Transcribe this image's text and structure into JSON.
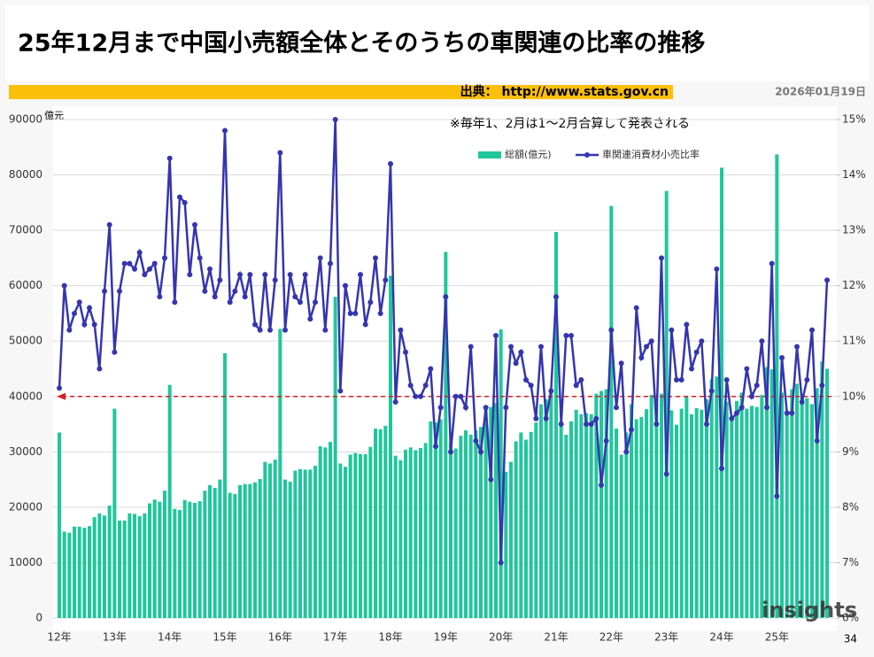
{
  "chart_data": {
    "type": "bar-line",
    "title": "25年12月まで中国小売額全体とそのうちの車関連の比率の推移",
    "source": "出典： http://www.stats.gov.cn",
    "date": "2026年01月19日",
    "note": "※毎年1、2月は1～2月合算して発表される",
    "y_unit": "億元",
    "page_number": "34",
    "logo": "insights",
    "grid": true,
    "legend_position": "top-right",
    "categories": [
      "12年",
      null,
      null,
      null,
      null,
      null,
      null,
      null,
      null,
      null,
      null,
      "13年",
      null,
      null,
      null,
      null,
      null,
      null,
      null,
      null,
      null,
      null,
      "14年",
      null,
      null,
      null,
      null,
      null,
      null,
      null,
      null,
      null,
      null,
      "15年",
      null,
      null,
      null,
      null,
      null,
      null,
      null,
      null,
      null,
      null,
      "16年",
      null,
      null,
      null,
      null,
      null,
      null,
      null,
      null,
      null,
      null,
      "17年",
      null,
      null,
      null,
      null,
      null,
      null,
      null,
      null,
      null,
      null,
      "18年",
      null,
      null,
      null,
      null,
      null,
      null,
      null,
      null,
      null,
      null,
      "19年",
      null,
      null,
      null,
      null,
      null,
      null,
      null,
      null,
      null,
      null,
      "20年",
      null,
      null,
      null,
      null,
      null,
      null,
      null,
      null,
      null,
      null,
      "21年",
      null,
      null,
      null,
      null,
      null,
      null,
      null,
      null,
      null,
      null,
      "22年",
      null,
      null,
      null,
      null,
      null,
      null,
      null,
      null,
      null,
      null,
      "23年",
      null,
      null,
      null,
      null,
      null,
      null,
      null,
      null,
      null,
      null,
      "24年",
      null,
      null,
      null,
      null,
      null,
      null,
      null,
      null,
      null,
      null,
      "25年",
      null,
      null,
      null,
      null,
      null,
      null,
      null,
      null,
      null,
      null
    ],
    "ylim": [
      0,
      90000
    ],
    "yticks": [
      0,
      10000,
      20000,
      30000,
      40000,
      50000,
      60000,
      70000,
      80000,
      90000
    ],
    "y2lim": [
      6,
      15
    ],
    "y2ticks": [
      {
        "value": 6,
        "label": "6%"
      },
      {
        "value": 7,
        "label": "7%"
      },
      {
        "value": 8,
        "label": "8%"
      },
      {
        "value": 9,
        "label": "9%"
      },
      {
        "value": 10,
        "label": "10%"
      },
      {
        "value": 11,
        "label": "11%"
      },
      {
        "value": 12,
        "label": "12%"
      },
      {
        "value": 13,
        "label": "13%"
      },
      {
        "value": 14,
        "label": "14%"
      },
      {
        "value": 15,
        "label": "15%"
      }
    ],
    "reference_line": {
      "value": 10,
      "axis": "y2",
      "color": "#d62020"
    },
    "series": [
      {
        "name": "総額(億元)",
        "kind": "bar",
        "color": "#1fc79b",
        "values": [
          33500,
          15600,
          15400,
          16500,
          16500,
          16300,
          16600,
          18200,
          18900,
          18500,
          20300,
          37800,
          17600,
          17600,
          18900,
          18800,
          18400,
          18900,
          20700,
          21400,
          21000,
          23000,
          42100,
          19700,
          19500,
          21300,
          21000,
          20800,
          21100,
          23000,
          24000,
          23500,
          25000,
          47800,
          22600,
          22400,
          24000,
          24200,
          24200,
          24500,
          25100,
          28200,
          27900,
          28600,
          52200,
          25000,
          24600,
          26600,
          26900,
          26800,
          26800,
          27500,
          31000,
          30800,
          31800,
          58000,
          27900,
          27300,
          29500,
          29800,
          29600,
          29600,
          30900,
          34200,
          34100,
          34700,
          61800,
          29300,
          28500,
          30400,
          30800,
          30300,
          30700,
          31600,
          35500,
          35300,
          35900,
          66100,
          31700,
          30600,
          32900,
          33900,
          33100,
          33900,
          34500,
          38100,
          38100,
          38800,
          52100,
          26400,
          28200,
          31900,
          33500,
          32200,
          33600,
          35300,
          38600,
          39500,
          40600,
          69700,
          35500,
          33100,
          35500,
          37600,
          36800,
          37000,
          36800,
          40500,
          41000,
          41300,
          74400,
          34200,
          29500,
          33500,
          38600,
          35900,
          36300,
          37700,
          40300,
          38700,
          40500,
          77100,
          37500,
          34900,
          37800,
          39900,
          36800,
          37900,
          37600,
          39500,
          43100,
          43600,
          81300,
          39000,
          35700,
          39200,
          40700,
          37800,
          38300,
          38100,
          40300,
          45300,
          44900,
          83700,
          40700,
          37200,
          41300,
          42300,
          40300,
          39700,
          38600,
          41500,
          46300,
          45000
        ]
      },
      {
        "name": "車関連消費材小売比率",
        "kind": "line",
        "axis": "y2",
        "color": "#3535b0",
        "values": [
          10.15,
          12.0,
          11.2,
          11.5,
          11.7,
          11.3,
          11.6,
          11.3,
          10.5,
          11.9,
          13.1,
          10.8,
          11.9,
          12.4,
          12.4,
          12.3,
          12.6,
          12.2,
          12.3,
          12.4,
          11.8,
          12.5,
          14.3,
          11.7,
          13.6,
          13.5,
          12.2,
          13.1,
          12.5,
          11.9,
          12.3,
          11.8,
          12.1,
          14.8,
          11.7,
          11.9,
          12.2,
          11.8,
          12.2,
          11.3,
          11.2,
          12.2,
          11.2,
          12.1,
          14.4,
          11.2,
          12.2,
          11.8,
          11.7,
          12.2,
          11.4,
          11.7,
          12.5,
          11.2,
          12.4,
          15.0,
          10.1,
          12.0,
          11.5,
          11.5,
          12.2,
          11.3,
          11.7,
          12.5,
          11.5,
          12.1,
          14.2,
          9.9,
          11.2,
          10.8,
          10.2,
          10.0,
          10.0,
          10.2,
          10.5,
          9.1,
          9.8,
          11.8,
          9.0,
          10.0,
          10.0,
          9.8,
          10.9,
          9.2,
          9.0,
          9.8,
          8.5,
          11.1,
          7.0,
          9.8,
          10.9,
          10.6,
          10.8,
          10.3,
          10.2,
          9.6,
          10.9,
          9.6,
          10.1,
          11.8,
          9.5,
          11.1,
          11.1,
          10.2,
          10.3,
          9.5,
          9.5,
          9.6,
          8.4,
          9.2,
          11.2,
          9.8,
          10.6,
          9.0,
          9.4,
          11.6,
          10.7,
          10.9,
          11.0,
          9.5,
          12.5,
          8.6,
          11.2,
          10.3,
          10.3,
          11.3,
          10.5,
          10.8,
          11.0,
          9.5,
          10.1,
          12.3,
          8.7,
          10.3,
          9.6,
          9.7,
          9.8,
          10.5,
          10.0,
          10.2,
          11.0,
          9.8,
          12.4,
          8.2,
          10.7,
          9.7,
          9.7,
          10.9,
          9.9,
          10.3,
          11.2,
          9.2,
          10.2,
          12.1
        ]
      }
    ]
  }
}
